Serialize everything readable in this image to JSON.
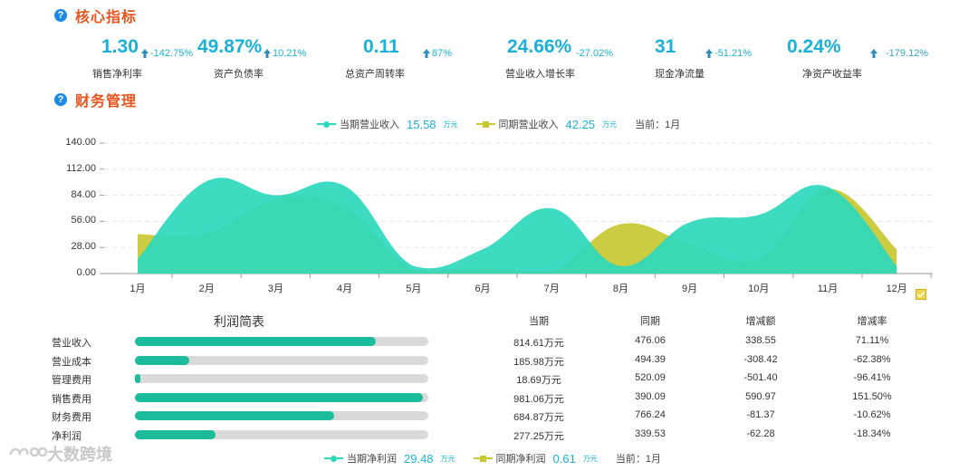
{
  "sections": {
    "core": "核心指标",
    "finance": "财务管理"
  },
  "kpis": [
    {
      "value": "1.30",
      "change": "-142.75%",
      "label": "销售净利率"
    },
    {
      "value": "49.87%",
      "change": "10.21%",
      "label": "资产负债率"
    },
    {
      "value": "0.11",
      "change": "87%",
      "label": "总资产周转率"
    },
    {
      "value": "24.66%",
      "change": "-27.02%",
      "label": "营业收入增长率"
    },
    {
      "value": "31",
      "change": "-51.21%",
      "label": "现金净流量"
    },
    {
      "value": "0.24%",
      "change": "-179.12%",
      "label": "净资产收益率"
    }
  ],
  "legend_top": {
    "current_label": "当期营业收入",
    "current_value": "15.58",
    "current_unit": "万元",
    "prev_label": "同期营业收入",
    "prev_value": "42.25",
    "prev_unit": "万元",
    "period": "当前：1月"
  },
  "legend_bottom": {
    "current_label": "当期净利润",
    "current_value": "29.48",
    "current_unit": "万元",
    "prev_label": "同期净利润",
    "prev_value": "0.61",
    "prev_unit": "万元",
    "period": "当前：1月"
  },
  "colors": {
    "current": "#2dd8bc",
    "prev": "#c7c72e",
    "accent": "#1ab1d9",
    "title": "#e8541c",
    "bar": "#1abc9c"
  },
  "chart_data": {
    "type": "area",
    "categories": [
      "1月",
      "2月",
      "3月",
      "4月",
      "5月",
      "6月",
      "7月",
      "8月",
      "9月",
      "10月",
      "11月",
      "12月"
    ],
    "ylim": [
      0,
      140
    ],
    "yticks": [
      "0.00",
      "28.00",
      "56.00",
      "84.00",
      "112.00",
      "140.00"
    ],
    "series": [
      {
        "name": "当期营业收入",
        "values": [
          15.58,
          99,
          84,
          94,
          8,
          26,
          70,
          8,
          55,
          63,
          93,
          8
        ]
      },
      {
        "name": "同期营业收入",
        "values": [
          42.25,
          43,
          79,
          71,
          4,
          6,
          3,
          53,
          32,
          16,
          91,
          26
        ]
      }
    ]
  },
  "profit_table": {
    "title": "利润简表",
    "headers": [
      "当期",
      "同期",
      "增减额",
      "增减率"
    ],
    "rows": [
      {
        "name": "营业收入",
        "bar": 0.82,
        "current": "814.61万元",
        "prev": "476.06",
        "delta": "338.55",
        "rate": "71.11%"
      },
      {
        "name": "营业成本",
        "bar": 0.185,
        "current": "185.98万元",
        "prev": "494.39",
        "delta": "-308.42",
        "rate": "-62.38%"
      },
      {
        "name": "管理费用",
        "bar": 0.02,
        "current": "18.69万元",
        "prev": "520.09",
        "delta": "-501.40",
        "rate": "-96.41%"
      },
      {
        "name": "销售费用",
        "bar": 0.98,
        "current": "981.06万元",
        "prev": "390.09",
        "delta": "590.97",
        "rate": "151.50%"
      },
      {
        "name": "财务费用",
        "bar": 0.68,
        "current": "684.87万元",
        "prev": "766.24",
        "delta": "-81.37",
        "rate": "-10.62%"
      },
      {
        "name": "净利润",
        "bar": 0.275,
        "current": "277.25万元",
        "prev": "339.53",
        "delta": "-62.28",
        "rate": "-18.34%"
      }
    ]
  },
  "watermark": "大数跨境"
}
